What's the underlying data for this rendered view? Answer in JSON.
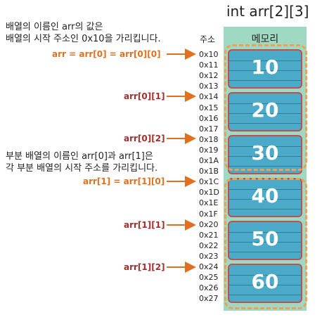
{
  "title": "int arr[2][3]",
  "note1": [
    "배열의 이름인 arr의 값은",
    "배열의 시작 주소인 0x10을 가리킵니다."
  ],
  "note2": [
    "부분 배열의 이름인 arr[0]과 arr[1]은",
    "각 부분 배열의 시작 주소를 가리킵니다."
  ],
  "addr_header": "주소",
  "mem_header": "메모리",
  "addresses": [
    "0x10",
    "0x11",
    "0x12",
    "0x13",
    "0x14",
    "0x15",
    "0x16",
    "0x17",
    "0x18",
    "0x19",
    "0x1A",
    "0x1B",
    "0x1C",
    "0x1D",
    "0x1E",
    "0x1F",
    "0x20",
    "0x21",
    "0x22",
    "0x23",
    "0x24",
    "0x25",
    "0x26",
    "0x27"
  ],
  "values": [
    "10",
    "20",
    "30",
    "40",
    "50",
    "60"
  ],
  "labels": {
    "l0": "arr = arr[0] = arr[0][0]",
    "l1": "arr[0][1]",
    "l2": "arr[0][2]",
    "l3": "arr[1] = arr[1][0]",
    "l4": "arr[1][1]",
    "l5": "arr[1][2]"
  },
  "colors": {
    "arrow": "#e07020",
    "cell": "#4aaac8",
    "border": "#c0504d",
    "dashed": "#f0a050",
    "memory_bg": "#9fd8c3"
  }
}
